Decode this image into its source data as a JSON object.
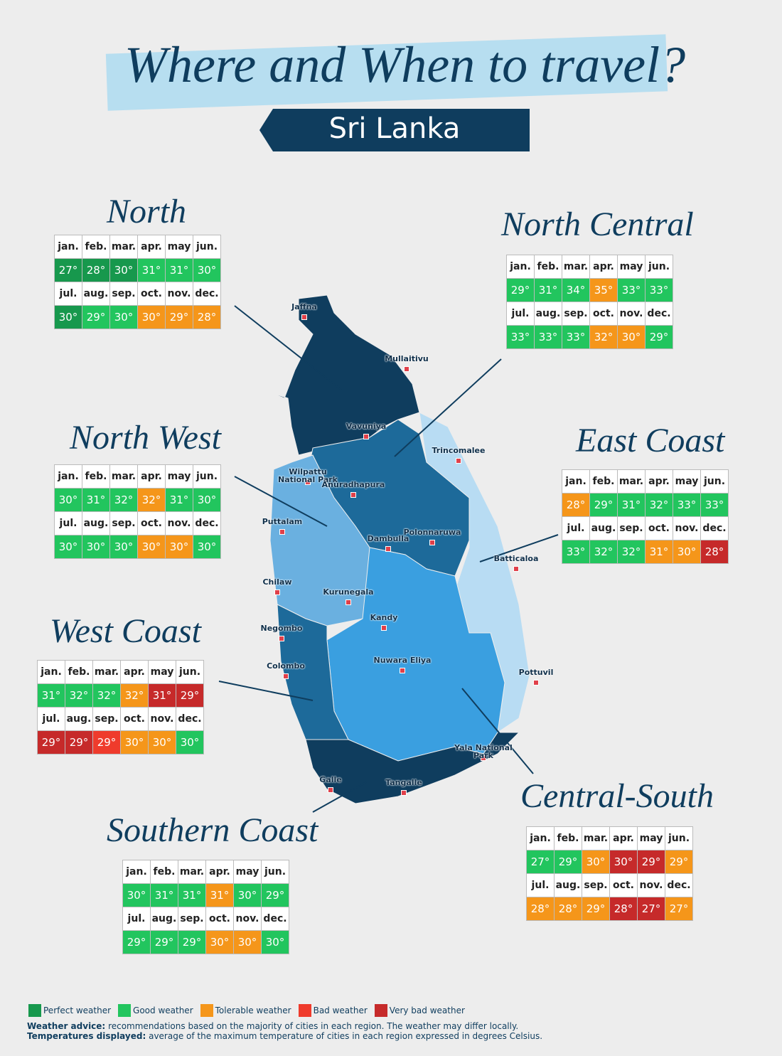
{
  "header": {
    "title": "Where and When to travel?",
    "subtitle": "Sri Lanka"
  },
  "months": [
    "jan.",
    "feb.",
    "mar.",
    "apr.",
    "may",
    "jun.",
    "jul.",
    "aug.",
    "sep.",
    "oct.",
    "nov.",
    "dec."
  ],
  "legend": [
    {
      "label": "Perfect weather",
      "color": "#17984d"
    },
    {
      "label": "Good weather",
      "color": "#22c55e"
    },
    {
      "label": "Tolerable weather",
      "color": "#f5961a"
    },
    {
      "label": "Bad weather",
      "color": "#ef3b2c"
    },
    {
      "label": "Very bad weather",
      "color": "#c62a2a"
    }
  ],
  "regions": [
    {
      "name": "North",
      "temps": [
        "27°",
        "28°",
        "30°",
        "31°",
        "31°",
        "30°",
        "30°",
        "29°",
        "30°",
        "30°",
        "29°",
        "28°"
      ],
      "weather": [
        0,
        0,
        0,
        1,
        1,
        1,
        0,
        1,
        1,
        2,
        2,
        2
      ]
    },
    {
      "name": "North Central",
      "temps": [
        "29°",
        "31°",
        "34°",
        "35°",
        "33°",
        "33°",
        "33°",
        "33°",
        "33°",
        "32°",
        "30°",
        "29°"
      ],
      "weather": [
        1,
        1,
        1,
        2,
        1,
        1,
        1,
        1,
        1,
        2,
        2,
        1
      ]
    },
    {
      "name": "North West",
      "temps": [
        "30°",
        "31°",
        "32°",
        "32°",
        "31°",
        "30°",
        "30°",
        "30°",
        "30°",
        "30°",
        "30°",
        "30°"
      ],
      "weather": [
        1,
        1,
        1,
        2,
        1,
        1,
        1,
        1,
        1,
        2,
        2,
        1
      ]
    },
    {
      "name": "East Coast",
      "temps": [
        "28°",
        "29°",
        "31°",
        "32°",
        "33°",
        "33°",
        "33°",
        "32°",
        "32°",
        "31°",
        "30°",
        "28°"
      ],
      "weather": [
        2,
        1,
        1,
        1,
        1,
        1,
        1,
        1,
        1,
        2,
        2,
        4
      ]
    },
    {
      "name": "West Coast",
      "temps": [
        "31°",
        "32°",
        "32°",
        "32°",
        "31°",
        "29°",
        "29°",
        "29°",
        "29°",
        "30°",
        "30°",
        "30°"
      ],
      "weather": [
        1,
        1,
        1,
        2,
        4,
        4,
        4,
        4,
        3,
        2,
        2,
        1
      ]
    },
    {
      "name": "Central-South",
      "temps": [
        "27°",
        "29°",
        "30°",
        "30°",
        "29°",
        "29°",
        "28°",
        "28°",
        "29°",
        "28°",
        "27°",
        "27°"
      ],
      "weather": [
        1,
        1,
        2,
        4,
        4,
        2,
        2,
        2,
        2,
        4,
        4,
        2
      ]
    },
    {
      "name": "Southern Coast",
      "temps": [
        "30°",
        "31°",
        "31°",
        "31°",
        "30°",
        "29°",
        "29°",
        "29°",
        "29°",
        "30°",
        "30°",
        "30°"
      ],
      "weather": [
        1,
        1,
        1,
        2,
        1,
        1,
        1,
        1,
        1,
        2,
        2,
        1
      ]
    }
  ],
  "cities": [
    "Jaffna",
    "Mullaitivu",
    "Vavuniya",
    "Trincomalee",
    "Wilpattu National Park",
    "Anuradhapura",
    "Puttalam",
    "Dambulla",
    "Polonnaruwa",
    "Batticaloa",
    "Chilaw",
    "Kurunegala",
    "Negombo",
    "Kandy",
    "Colombo",
    "Nuwara Eliya",
    "Pottuvil",
    "Yala National Park",
    "Galle",
    "Tangalle"
  ],
  "notes": [
    {
      "label": "Weather advice:",
      "text": "recommendations based on the majority of cities in each region. The weather may differ locally."
    },
    {
      "label": "Temperatures displayed:",
      "text": "average of the maximum temperature of cities in each region expressed in degrees Celsius."
    }
  ]
}
